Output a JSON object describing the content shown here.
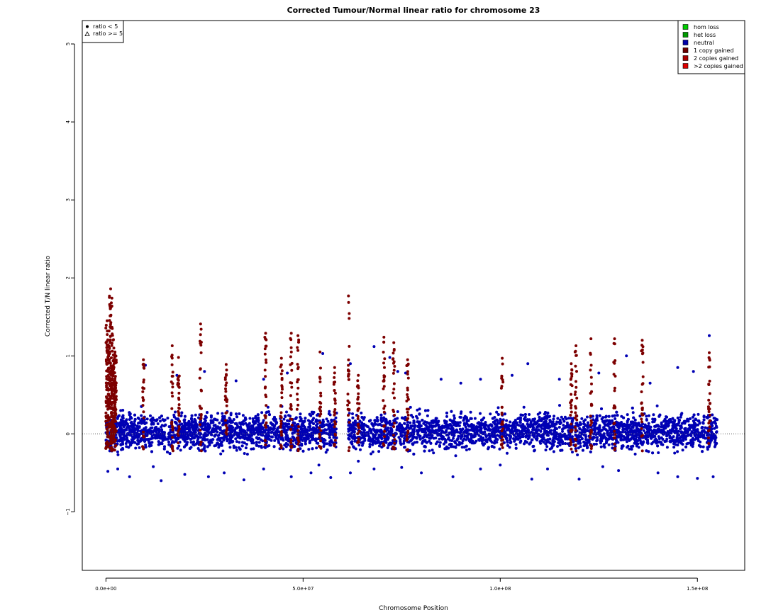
{
  "chart_data": {
    "type": "scatter",
    "title": "Corrected Tumour/Normal linear ratio for chromosome  23",
    "xlabel": "Chromosome Position",
    "ylabel": "Corrected T/N linear ratio",
    "xlim": [
      -6000000,
      162000000
    ],
    "ylim": [
      -1.75,
      5.3
    ],
    "x_ticks": [
      {
        "value": 0,
        "label": "0.0e+00"
      },
      {
        "value": 50000000,
        "label": "5.0e+07"
      },
      {
        "value": 100000000,
        "label": "1.0e+08"
      },
      {
        "value": 150000000,
        "label": "1.5e+08"
      }
    ],
    "y_ticks": [
      {
        "value": -1,
        "label": "−1"
      },
      {
        "value": 0,
        "label": "0"
      },
      {
        "value": 1,
        "label": "1"
      },
      {
        "value": 2,
        "label": "2"
      },
      {
        "value": 3,
        "label": "3"
      },
      {
        "value": 4,
        "label": "4"
      },
      {
        "value": 5,
        "label": "5"
      }
    ],
    "reference_line": {
      "y": 0,
      "style": "dotted"
    },
    "data_extent": {
      "x_min": 0,
      "x_max": 155000000
    },
    "centromere_gap": [
      58500000,
      61500000
    ],
    "shape_legend": {
      "placement": "top-left",
      "items": [
        {
          "label": "ratio < 5",
          "symbol": "filled-circle"
        },
        {
          "label": "ratio >= 5",
          "symbol": "open-triangle"
        }
      ]
    },
    "legend": {
      "placement": "top-right",
      "items": [
        {
          "label": "hom loss",
          "color": "#00cc00"
        },
        {
          "label": "het loss",
          "color": "#009900"
        },
        {
          "label": "neutral",
          "color": "#0000aa"
        },
        {
          "label": "1 copy gained",
          "color": "#6b0000"
        },
        {
          "label": "2 copies gained",
          "color": "#aa0000"
        },
        {
          "label": ">2 copies gained",
          "color": "#dd0000"
        }
      ]
    },
    "series": [
      {
        "name": "neutral",
        "color": "#0000b4",
        "typical_range": [
          -0.35,
          0.55
        ],
        "points": [
          [
            500000,
            -0.48
          ],
          [
            3000000,
            -0.45
          ],
          [
            6000000,
            -0.55
          ],
          [
            12000000,
            -0.42
          ],
          [
            14000000,
            -0.6
          ],
          [
            20000000,
            -0.52
          ],
          [
            26000000,
            -0.55
          ],
          [
            30000000,
            -0.5
          ],
          [
            35000000,
            -0.59
          ],
          [
            40000000,
            -0.45
          ],
          [
            47000000,
            -0.55
          ],
          [
            52000000,
            -0.5
          ],
          [
            54000000,
            -0.4
          ],
          [
            57000000,
            -0.56
          ],
          [
            62000000,
            -0.5
          ],
          [
            64000000,
            -0.35
          ],
          [
            68000000,
            -0.45
          ],
          [
            75000000,
            -0.43
          ],
          [
            80000000,
            -0.5
          ],
          [
            88000000,
            -0.55
          ],
          [
            95000000,
            -0.45
          ],
          [
            100000000,
            -0.4
          ],
          [
            108000000,
            -0.58
          ],
          [
            112000000,
            -0.45
          ],
          [
            120000000,
            -0.58
          ],
          [
            126000000,
            -0.42
          ],
          [
            130000000,
            -0.47
          ],
          [
            140000000,
            -0.5
          ],
          [
            145000000,
            -0.55
          ],
          [
            150000000,
            -0.57
          ],
          [
            154000000,
            -0.55
          ],
          [
            10000000,
            0.88
          ],
          [
            18000000,
            0.75
          ],
          [
            25000000,
            0.8
          ],
          [
            33000000,
            0.68
          ],
          [
            40000000,
            0.7
          ],
          [
            46000000,
            0.78
          ],
          [
            55000000,
            1.03
          ],
          [
            62000000,
            0.9
          ],
          [
            68000000,
            1.12
          ],
          [
            72000000,
            0.98
          ],
          [
            74000000,
            0.8
          ],
          [
            76000000,
            0.78
          ],
          [
            85000000,
            0.7
          ],
          [
            90000000,
            0.65
          ],
          [
            95000000,
            0.7
          ],
          [
            103000000,
            0.75
          ],
          [
            107000000,
            0.9
          ],
          [
            115000000,
            0.7
          ],
          [
            125000000,
            0.78
          ],
          [
            132000000,
            1.0
          ],
          [
            138000000,
            0.65
          ],
          [
            145000000,
            0.85
          ],
          [
            149000000,
            0.8
          ],
          [
            153000000,
            1.26
          ]
        ]
      },
      {
        "name": "1 copy gained",
        "color": "#7d0000",
        "regions": [
          {
            "x": 300000,
            "max": 1.45
          },
          {
            "x": 800000,
            "max": 1.32
          },
          {
            "x": 1200000,
            "max": 1.86
          },
          {
            "x": 1600000,
            "max": 1.35
          },
          {
            "x": 2000000,
            "max": 1.1
          },
          {
            "x": 2300000,
            "max": 1.05
          },
          {
            "x": 9500000,
            "max": 0.95
          },
          {
            "x": 16800000,
            "max": 1.13
          },
          {
            "x": 18400000,
            "max": 0.98
          },
          {
            "x": 24000000,
            "max": 1.41
          },
          {
            "x": 30500000,
            "max": 0.89
          },
          {
            "x": 40500000,
            "max": 1.29
          },
          {
            "x": 44500000,
            "max": 0.97
          },
          {
            "x": 47000000,
            "max": 1.29
          },
          {
            "x": 48700000,
            "max": 1.26
          },
          {
            "x": 54300000,
            "max": 1.05
          },
          {
            "x": 58000000,
            "max": 0.85
          },
          {
            "x": 61500000,
            "max": 1.77
          },
          {
            "x": 64000000,
            "max": 0.75
          },
          {
            "x": 70500000,
            "max": 1.24
          },
          {
            "x": 73000000,
            "max": 1.17
          },
          {
            "x": 76500000,
            "max": 0.95
          },
          {
            "x": 100500000,
            "max": 0.97
          },
          {
            "x": 118000000,
            "max": 0.9
          },
          {
            "x": 119200000,
            "max": 1.13
          },
          {
            "x": 123000000,
            "max": 1.22
          },
          {
            "x": 129000000,
            "max": 1.22
          },
          {
            "x": 136000000,
            "max": 1.2
          },
          {
            "x": 153000000,
            "max": 1.04
          }
        ]
      }
    ]
  }
}
